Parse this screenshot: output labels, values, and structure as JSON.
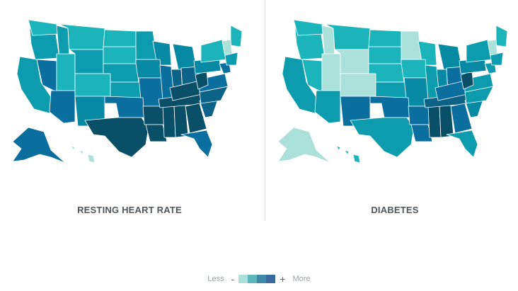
{
  "maps": [
    {
      "title": "RESTING HEART RATE",
      "palette": {
        "0": "#ace0db",
        "1": "#1bb4bb",
        "2": "#0d9cad",
        "3": "#0788a3",
        "4": "#0a6f9f",
        "5": "#0d6288",
        "6": "#0a4f68"
      },
      "regions": {
        "pacific-nw": 2,
        "washington": 1,
        "idaho": 2,
        "montana": 1,
        "north-dakota": 1,
        "minnesota": 2,
        "california": 2,
        "nevada": 4,
        "utah": 1,
        "wyoming": 2,
        "south-dakota": 1,
        "iowa": 3,
        "wisconsin": 3,
        "arizona": 4,
        "colorado": 1,
        "nebraska": 2,
        "kansas": 2,
        "missouri": 4,
        "illinois": 4,
        "new-mexico": 3,
        "oklahoma": 4,
        "texas": 6,
        "louisiana": 6,
        "arkansas": 6,
        "mississippi": 6,
        "alabama": 6,
        "georgia": 6,
        "tennessee": 6,
        "kentucky": 6,
        "indiana": 5,
        "michigan": 3,
        "ohio": 5,
        "florida": 4,
        "south-carolina": 5,
        "north-carolina": 5,
        "virginia": 4,
        "west-virginia": 6,
        "pennsylvania": 3,
        "new-york": 1,
        "maine": 1,
        "vermont": 0,
        "new-england-south": 2,
        "maryland": 4,
        "alaska": 4,
        "hawaii": 0
      }
    },
    {
      "title": "DIABETES",
      "palette": {
        "0": "#ace0db",
        "1": "#1bb4bb",
        "2": "#0d9cad",
        "3": "#0788a3",
        "4": "#0a6f9f",
        "5": "#0d6288",
        "6": "#0a4f68"
      },
      "regions": {
        "pacific-nw": 1,
        "washington": 1,
        "idaho": 0,
        "montana": 1,
        "north-dakota": 1,
        "minnesota": 0,
        "california": 2,
        "nevada": 1,
        "utah": 0,
        "wyoming": 0,
        "south-dakota": 1,
        "iowa": 1,
        "wisconsin": 1,
        "arizona": 2,
        "colorado": 0,
        "nebraska": 1,
        "kansas": 2,
        "missouri": 3,
        "illinois": 2,
        "new-mexico": 4,
        "oklahoma": 4,
        "texas": 2,
        "louisiana": 4,
        "arkansas": 4,
        "mississippi": 6,
        "alabama": 6,
        "georgia": 4,
        "tennessee": 5,
        "kentucky": 4,
        "indiana": 3,
        "michigan": 3,
        "ohio": 4,
        "florida": 2,
        "south-carolina": 3,
        "north-carolina": 2,
        "virginia": 2,
        "west-virginia": 6,
        "pennsylvania": 3,
        "new-york": 2,
        "maine": 1,
        "vermont": 0,
        "new-england-south": 2,
        "maryland": 2,
        "alaska": 0,
        "hawaii": 1
      }
    }
  ],
  "legend": {
    "less_label": "Less",
    "less_sign": "-",
    "more_sign": "+",
    "more_label": "More",
    "swatches": [
      "#ace0db",
      "#5fb6b8",
      "#3f88a8",
      "#3a6a9e"
    ]
  }
}
